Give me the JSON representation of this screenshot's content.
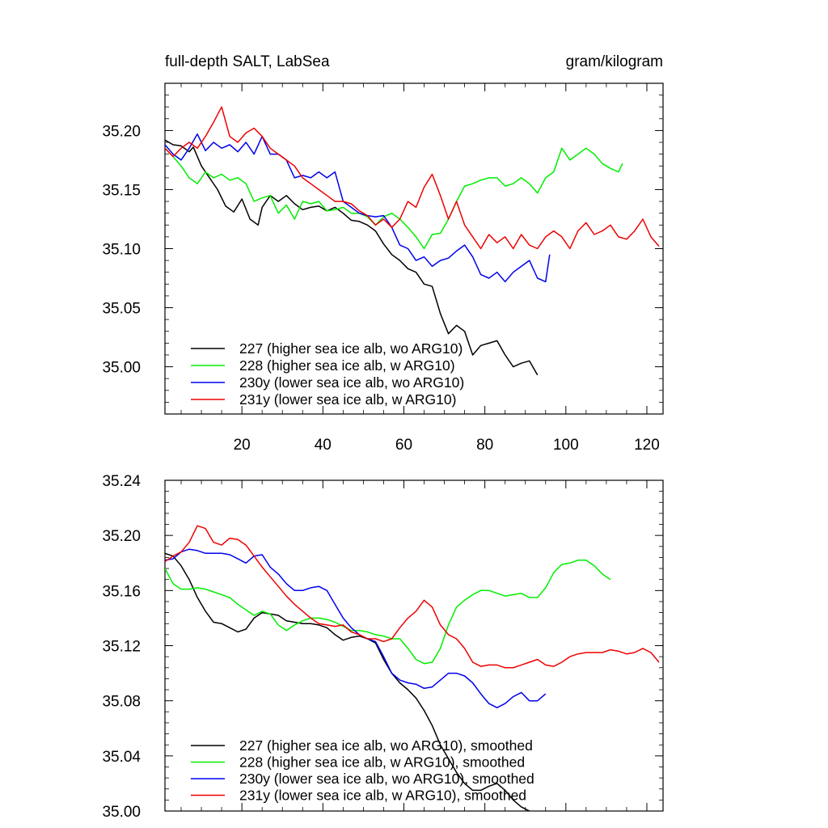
{
  "chart_data": [
    {
      "type": "line",
      "title_left": "full-depth SALT, LabSea",
      "title_right": "gram/kilogram",
      "xlim": [
        1,
        124
      ],
      "ylim": [
        34.96,
        35.24
      ],
      "x_ticks": [
        20,
        40,
        60,
        80,
        100,
        120
      ],
      "y_ticks": [
        35.0,
        35.05,
        35.1,
        35.15,
        35.2
      ],
      "y_tick_labels": [
        "35.00",
        "35.05",
        "35.10",
        "35.15",
        "35.20"
      ],
      "legend_location": "bottom-left",
      "series": [
        {
          "name": "227 (higher sea ice alb, wo ARG10)",
          "color": "#000000",
          "x": [
            1,
            3,
            5,
            7,
            8,
            10,
            12,
            14,
            16,
            18,
            20,
            22,
            24,
            25,
            27,
            29,
            31,
            33,
            35,
            37,
            39,
            41,
            43,
            45,
            47,
            49,
            51,
            53,
            55,
            57,
            59,
            61,
            63,
            65,
            67,
            69,
            71,
            73,
            75,
            77,
            79,
            81,
            83,
            85,
            87,
            89,
            91,
            93
          ],
          "y": [
            35.192,
            35.188,
            35.187,
            35.182,
            35.186,
            35.17,
            35.16,
            35.15,
            35.136,
            35.131,
            35.142,
            35.125,
            35.12,
            35.135,
            35.145,
            35.14,
            35.145,
            35.138,
            35.133,
            35.135,
            35.136,
            35.132,
            35.135,
            35.13,
            35.124,
            35.123,
            35.12,
            35.115,
            35.104,
            35.095,
            35.09,
            35.083,
            35.08,
            35.07,
            35.068,
            35.045,
            35.028,
            35.035,
            35.03,
            35.01,
            35.018,
            35.02,
            35.022,
            35.01,
            35.0,
            35.003,
            35.005,
            34.993
          ]
        },
        {
          "name": "228 (higher sea ice alb, w ARG10)",
          "color": "#00ee00",
          "x": [
            1,
            3,
            5,
            7,
            9,
            11,
            13,
            15,
            17,
            19,
            21,
            23,
            25,
            27,
            29,
            31,
            33,
            35,
            37,
            39,
            41,
            43,
            45,
            47,
            49,
            51,
            53,
            55,
            57,
            59,
            61,
            63,
            65,
            67,
            69,
            71,
            73,
            75,
            77,
            79,
            81,
            83,
            85,
            87,
            89,
            91,
            93,
            95,
            97,
            99,
            101,
            103,
            105,
            107,
            109,
            111,
            113,
            114
          ],
          "y": [
            35.185,
            35.178,
            35.17,
            35.16,
            35.155,
            35.165,
            35.16,
            35.163,
            35.158,
            35.16,
            35.155,
            35.14,
            35.143,
            35.145,
            35.13,
            35.137,
            35.125,
            35.14,
            35.138,
            35.14,
            35.132,
            35.133,
            35.135,
            35.13,
            35.13,
            35.127,
            35.12,
            35.127,
            35.13,
            35.125,
            35.118,
            35.11,
            35.1,
            35.112,
            35.113,
            35.125,
            35.14,
            35.153,
            35.155,
            35.158,
            35.16,
            35.16,
            35.153,
            35.155,
            35.16,
            35.155,
            35.147,
            35.16,
            35.165,
            35.185,
            35.175,
            35.18,
            35.185,
            35.18,
            35.172,
            35.168,
            35.165,
            35.172
          ]
        },
        {
          "name": "230y (lower sea ice alb, wo ARG10)",
          "color": "#0000ee",
          "x": [
            1,
            3,
            5,
            7,
            9,
            11,
            13,
            15,
            17,
            19,
            21,
            23,
            25,
            27,
            29,
            31,
            33,
            35,
            37,
            39,
            41,
            43,
            45,
            47,
            49,
            51,
            53,
            55,
            57,
            59,
            61,
            63,
            65,
            67,
            69,
            71,
            73,
            75,
            77,
            79,
            81,
            83,
            85,
            87,
            89,
            91,
            93,
            95,
            96
          ],
          "y": [
            35.188,
            35.18,
            35.175,
            35.185,
            35.197,
            35.183,
            35.19,
            35.185,
            35.188,
            35.182,
            35.19,
            35.18,
            35.195,
            35.18,
            35.18,
            35.175,
            35.16,
            35.162,
            35.16,
            35.165,
            35.16,
            35.165,
            35.14,
            35.135,
            35.13,
            35.128,
            35.127,
            35.128,
            35.118,
            35.103,
            35.1,
            35.09,
            35.093,
            35.085,
            35.09,
            35.092,
            35.098,
            35.103,
            35.093,
            35.078,
            35.075,
            35.08,
            35.072,
            35.08,
            35.085,
            35.09,
            35.075,
            35.072,
            35.095
          ]
        },
        {
          "name": "231y (lower sea ice alb, w ARG10)",
          "color": "#ee0000",
          "x": [
            1,
            3,
            5,
            7,
            9,
            11,
            13,
            15,
            17,
            19,
            21,
            23,
            25,
            27,
            29,
            31,
            33,
            35,
            37,
            39,
            41,
            43,
            45,
            47,
            49,
            51,
            53,
            55,
            57,
            59,
            61,
            63,
            65,
            67,
            69,
            71,
            73,
            75,
            77,
            79,
            81,
            83,
            85,
            87,
            89,
            91,
            93,
            95,
            97,
            99,
            101,
            103,
            105,
            107,
            109,
            111,
            113,
            115,
            117,
            119,
            121,
            123
          ],
          "y": [
            35.185,
            35.178,
            35.185,
            35.19,
            35.185,
            35.195,
            35.207,
            35.22,
            35.195,
            35.19,
            35.198,
            35.202,
            35.195,
            35.185,
            35.18,
            35.175,
            35.17,
            35.16,
            35.155,
            35.15,
            35.145,
            35.14,
            35.14,
            35.138,
            35.132,
            35.128,
            35.12,
            35.125,
            35.118,
            35.125,
            35.14,
            35.135,
            35.152,
            35.163,
            35.145,
            35.125,
            35.14,
            35.12,
            35.11,
            35.1,
            35.112,
            35.105,
            35.11,
            35.1,
            35.112,
            35.103,
            35.1,
            35.11,
            35.115,
            35.11,
            35.1,
            35.115,
            35.122,
            35.112,
            35.115,
            35.12,
            35.11,
            35.108,
            35.115,
            35.125,
            35.11,
            35.102
          ]
        }
      ]
    },
    {
      "type": "line",
      "xlim": [
        1,
        124
      ],
      "ylim": [
        35.0,
        35.24
      ],
      "x_ticks": [
        20,
        40,
        60,
        80,
        100,
        120
      ],
      "y_ticks": [
        35.0,
        35.04,
        35.08,
        35.12,
        35.16,
        35.2,
        35.24
      ],
      "y_tick_labels": [
        "35.00",
        "35.04",
        "35.08",
        "35.12",
        "35.16",
        "35.20",
        "35.24"
      ],
      "legend_location": "bottom-left",
      "series": [
        {
          "name": "227 (higher sea ice alb, wo ARG10), smoothed",
          "color": "#000000",
          "x": [
            1,
            3,
            5,
            7,
            9,
            11,
            13,
            15,
            17,
            19,
            21,
            23,
            25,
            27,
            29,
            31,
            33,
            35,
            37,
            39,
            41,
            43,
            45,
            47,
            49,
            51,
            53,
            55,
            57,
            59,
            61,
            63,
            65,
            67,
            69,
            71,
            73,
            75,
            77,
            79,
            81,
            83,
            85,
            87,
            89,
            91
          ],
          "y": [
            35.187,
            35.185,
            35.178,
            35.168,
            35.155,
            35.145,
            35.137,
            35.136,
            35.133,
            35.13,
            35.132,
            35.14,
            35.144,
            35.143,
            35.142,
            35.138,
            35.137,
            35.136,
            35.136,
            35.135,
            35.133,
            35.128,
            35.124,
            35.126,
            35.127,
            35.125,
            35.122,
            35.11,
            35.1,
            35.093,
            35.088,
            35.082,
            35.073,
            35.062,
            35.048,
            35.038,
            35.028,
            35.02,
            35.015,
            35.015,
            35.018,
            35.02,
            35.015,
            35.008,
            35.003,
            35.0
          ]
        },
        {
          "name": "228 (higher sea ice alb, w ARG10), smoothed",
          "color": "#00ee00",
          "x": [
            1,
            3,
            5,
            7,
            9,
            11,
            13,
            15,
            17,
            19,
            21,
            23,
            25,
            27,
            29,
            31,
            33,
            35,
            37,
            39,
            41,
            43,
            45,
            47,
            49,
            51,
            53,
            55,
            57,
            59,
            61,
            63,
            65,
            67,
            69,
            71,
            73,
            75,
            77,
            79,
            81,
            83,
            85,
            87,
            89,
            91,
            93,
            95,
            97,
            99,
            101,
            103,
            105,
            107,
            109,
            111
          ],
          "y": [
            35.176,
            35.165,
            35.161,
            35.161,
            35.162,
            35.161,
            35.159,
            35.157,
            35.155,
            35.15,
            35.146,
            35.142,
            35.145,
            35.143,
            35.135,
            35.131,
            35.135,
            35.138,
            35.14,
            35.14,
            35.139,
            35.137,
            35.134,
            35.131,
            35.131,
            35.13,
            35.128,
            35.127,
            35.125,
            35.125,
            35.118,
            35.11,
            35.107,
            35.108,
            35.118,
            35.135,
            35.148,
            35.153,
            35.157,
            35.16,
            35.16,
            35.158,
            35.156,
            35.157,
            35.158,
            35.155,
            35.155,
            35.162,
            35.173,
            35.179,
            35.18,
            35.182,
            35.182,
            35.178,
            35.172,
            35.168
          ]
        },
        {
          "name": "230y (lower sea ice alb, wo ARG10), smoothed",
          "color": "#0000ee",
          "x": [
            1,
            3,
            5,
            7,
            9,
            11,
            13,
            15,
            17,
            19,
            21,
            23,
            25,
            27,
            29,
            31,
            33,
            35,
            37,
            39,
            41,
            43,
            45,
            47,
            49,
            51,
            53,
            55,
            57,
            59,
            61,
            63,
            65,
            67,
            69,
            71,
            73,
            75,
            77,
            79,
            81,
            83,
            85,
            87,
            89,
            91,
            93,
            95
          ],
          "y": [
            35.182,
            35.183,
            35.188,
            35.19,
            35.189,
            35.187,
            35.187,
            35.187,
            35.186,
            35.183,
            35.18,
            35.185,
            35.186,
            35.177,
            35.172,
            35.165,
            35.16,
            35.16,
            35.162,
            35.163,
            35.16,
            35.15,
            35.14,
            35.133,
            35.128,
            35.125,
            35.123,
            35.112,
            35.1,
            35.095,
            35.093,
            35.092,
            35.089,
            35.09,
            35.095,
            35.1,
            35.1,
            35.098,
            35.093,
            35.085,
            35.078,
            35.075,
            35.078,
            35.083,
            35.086,
            35.08,
            35.08,
            35.085
          ]
        },
        {
          "name": "231y (lower sea ice alb, w ARG10), smoothed",
          "color": "#ee0000",
          "x": [
            1,
            3,
            5,
            7,
            9,
            11,
            13,
            15,
            17,
            19,
            21,
            23,
            25,
            27,
            29,
            31,
            33,
            35,
            37,
            39,
            41,
            43,
            45,
            47,
            49,
            51,
            53,
            55,
            57,
            59,
            61,
            63,
            65,
            67,
            69,
            71,
            73,
            75,
            77,
            79,
            81,
            83,
            85,
            87,
            89,
            91,
            93,
            95,
            97,
            99,
            101,
            103,
            105,
            107,
            109,
            111,
            113,
            115,
            117,
            119,
            121,
            123
          ],
          "y": [
            35.181,
            35.185,
            35.188,
            35.195,
            35.207,
            35.205,
            35.195,
            35.193,
            35.198,
            35.197,
            35.193,
            35.185,
            35.177,
            35.17,
            35.163,
            35.156,
            35.15,
            35.145,
            35.14,
            35.136,
            35.135,
            35.134,
            35.135,
            35.13,
            35.128,
            35.125,
            35.125,
            35.123,
            35.125,
            35.133,
            35.14,
            35.145,
            35.153,
            35.148,
            35.135,
            35.128,
            35.125,
            35.118,
            35.108,
            35.105,
            35.106,
            35.106,
            35.104,
            35.104,
            35.106,
            35.108,
            35.11,
            35.106,
            35.105,
            35.108,
            35.112,
            35.114,
            35.115,
            35.115,
            35.115,
            35.117,
            35.116,
            35.114,
            35.115,
            35.118,
            35.115,
            35.108
          ]
        }
      ]
    }
  ]
}
